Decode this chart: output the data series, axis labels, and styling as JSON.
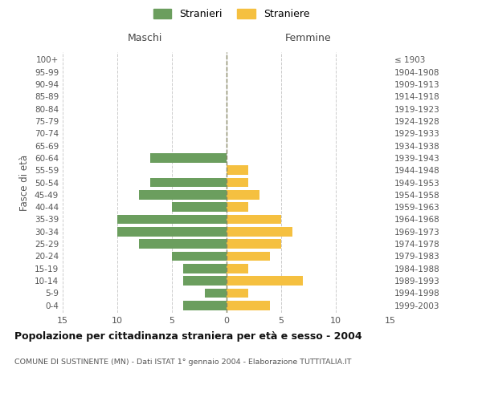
{
  "age_groups": [
    "0-4",
    "5-9",
    "10-14",
    "15-19",
    "20-24",
    "25-29",
    "30-34",
    "35-39",
    "40-44",
    "45-49",
    "50-54",
    "55-59",
    "60-64",
    "65-69",
    "70-74",
    "75-79",
    "80-84",
    "85-89",
    "90-94",
    "95-99",
    "100+"
  ],
  "birth_years": [
    "1999-2003",
    "1994-1998",
    "1989-1993",
    "1984-1988",
    "1979-1983",
    "1974-1978",
    "1969-1973",
    "1964-1968",
    "1959-1963",
    "1954-1958",
    "1949-1953",
    "1944-1948",
    "1939-1943",
    "1934-1938",
    "1929-1933",
    "1924-1928",
    "1919-1923",
    "1914-1918",
    "1909-1913",
    "1904-1908",
    "≤ 1903"
  ],
  "males": [
    4,
    2,
    4,
    4,
    5,
    8,
    10,
    10,
    5,
    8,
    7,
    0,
    7,
    0,
    0,
    0,
    0,
    0,
    0,
    0,
    0
  ],
  "females": [
    4,
    2,
    7,
    2,
    4,
    5,
    6,
    5,
    2,
    3,
    2,
    2,
    0,
    0,
    0,
    0,
    0,
    0,
    0,
    0,
    0
  ],
  "male_color": "#6b9e5e",
  "female_color": "#f5c040",
  "grid_color": "#cccccc",
  "center_line_color": "#888866",
  "title": "Popolazione per cittadinanza straniera per età e sesso - 2004",
  "subtitle": "COMUNE DI SUSTINENTE (MN) - Dati ISTAT 1° gennaio 2004 - Elaborazione TUTTITALIA.IT",
  "xlabel_left": "Maschi",
  "xlabel_right": "Femmine",
  "ylabel_left": "Fasce di età",
  "legend_male": "Stranieri",
  "legend_female": "Straniere",
  "xlim": 15,
  "background_color": "#ffffff"
}
